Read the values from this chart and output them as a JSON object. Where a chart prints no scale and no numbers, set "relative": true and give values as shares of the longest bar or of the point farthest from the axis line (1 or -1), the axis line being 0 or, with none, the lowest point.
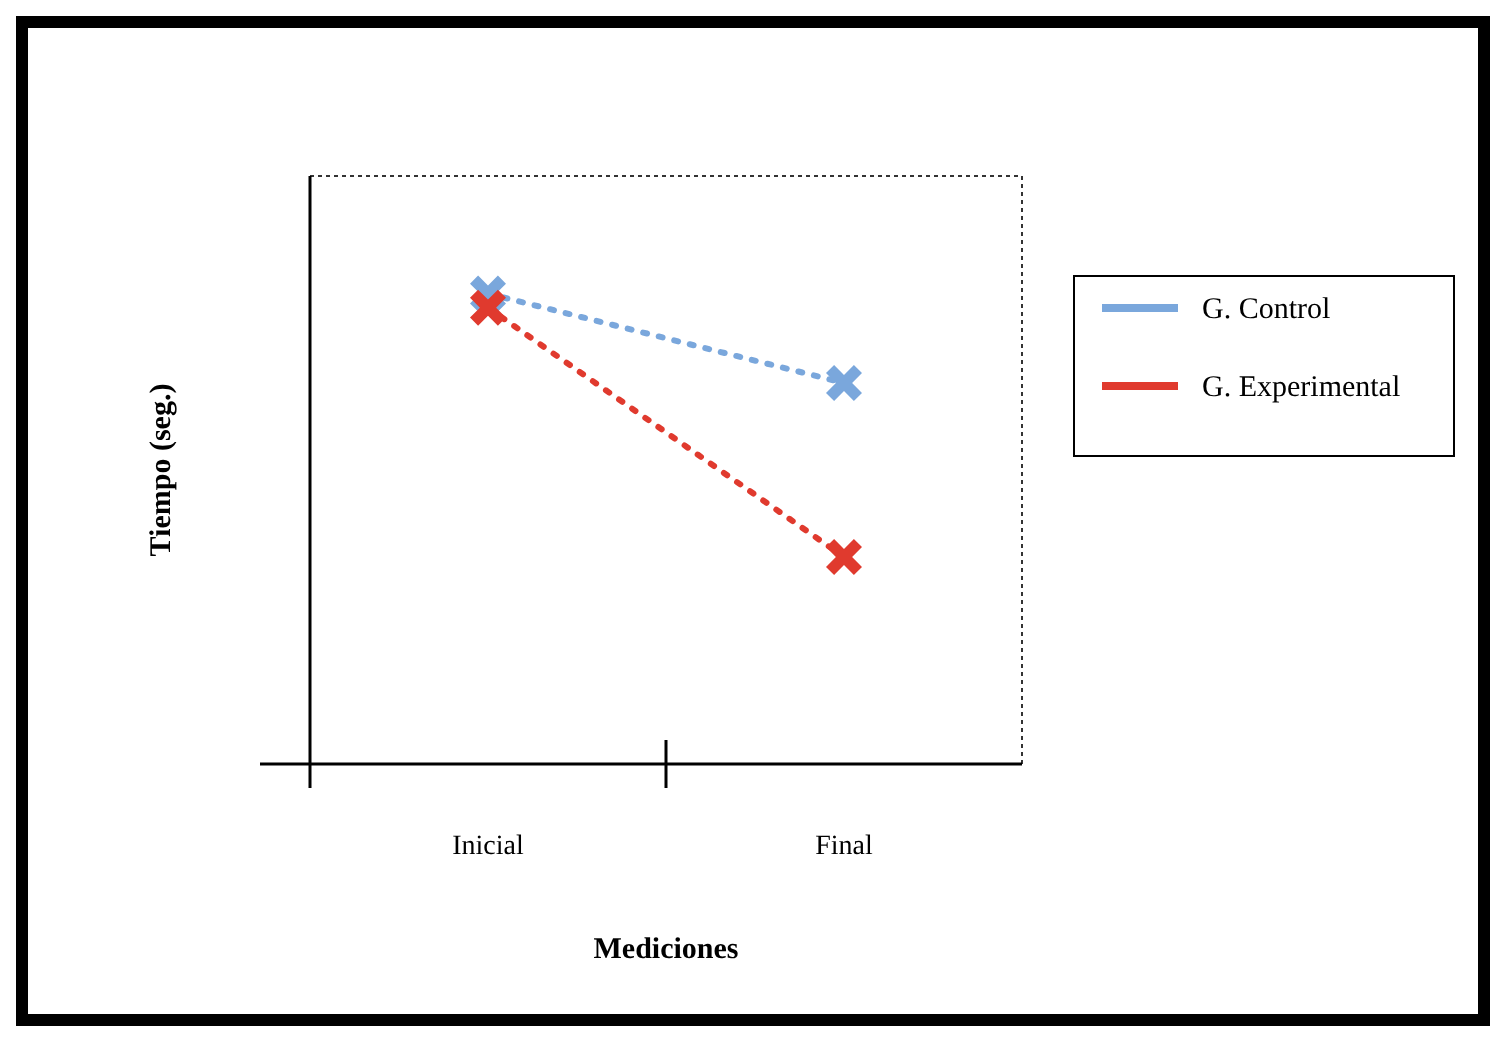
{
  "chart_data": {
    "type": "line",
    "relative": true,
    "xlabel": "Mediciones",
    "ylabel": "Tiempo (seg.)",
    "categories": [
      "Inicial",
      "Final"
    ],
    "series": [
      {
        "name": "G. Control",
        "color": "#7aa7dc",
        "values": [
          1,
          0.81
        ]
      },
      {
        "name": "G. Experimental",
        "color": "#e03a2e",
        "values": [
          0.97,
          0.44
        ]
      }
    ],
    "marker": "cross",
    "line_style": "dotted",
    "legend": "right"
  }
}
